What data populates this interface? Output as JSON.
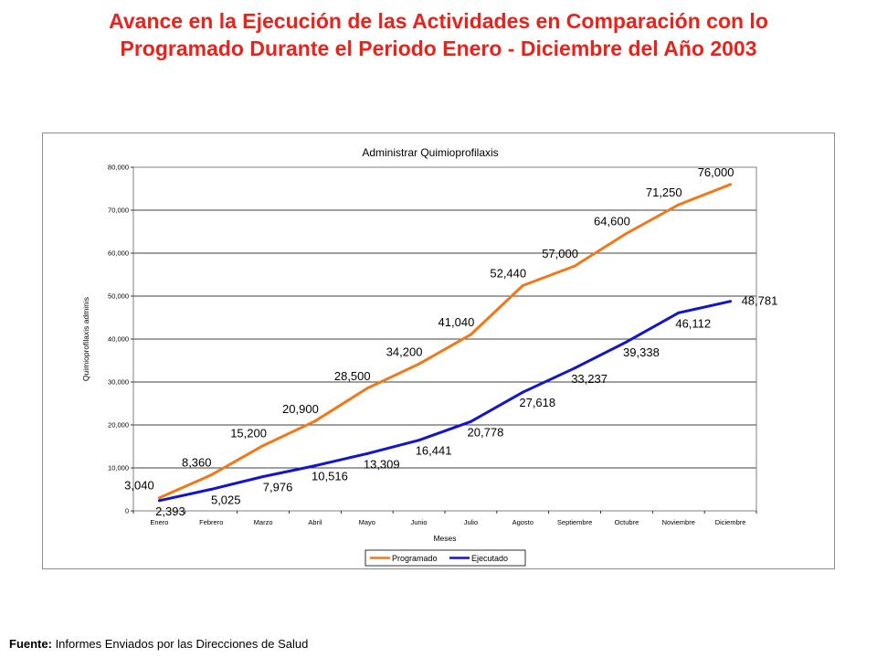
{
  "header": {
    "title_line1": "Avance en la Ejecución de las Actividades en Comparación con lo",
    "title_line2": "Programado Durante el Periodo Enero - Diciembre del Año 2003"
  },
  "footer": {
    "source_label": "Fuente:",
    "source_text": " Informes Enviados por las Direcciones de Salud"
  },
  "chart_data": {
    "type": "line",
    "title": "Administrar Quimioprofilaxis",
    "xlabel": "Meses",
    "ylabel": "Quimioprofilaxis adminis",
    "ylim": [
      0,
      80000
    ],
    "yticks": [
      0,
      10000,
      20000,
      30000,
      40000,
      50000,
      60000,
      70000,
      80000
    ],
    "ytick_labels": [
      "0",
      "10,000",
      "20,000",
      "30,000",
      "40,000",
      "50,000",
      "60,000",
      "70,000",
      "80,000"
    ],
    "grid": true,
    "legend_position": "bottom",
    "categories": [
      "Enero",
      "Febrero",
      "Marzo",
      "Abril",
      "Mayo",
      "Junio",
      "Julio",
      "Agosto",
      "Septiembre",
      "Octubre",
      "Noviembre",
      "Diciembre"
    ],
    "series": [
      {
        "name": "Programado",
        "color": "#f07818",
        "values": [
          3040,
          8360,
          15200,
          20900,
          28500,
          34200,
          41040,
          52440,
          57000,
          64600,
          71250,
          76000
        ],
        "labels": [
          "3,040",
          "8,360",
          "15,200",
          "20,900",
          "28,500",
          "34,200",
          "41,040",
          "52,440",
          "57,000",
          "64,600",
          "71,250",
          "76,000"
        ]
      },
      {
        "name": "Ejecutado",
        "color": "#1414c8",
        "values": [
          2393,
          5025,
          7976,
          10516,
          13309,
          16441,
          20778,
          27618,
          33237,
          39338,
          46112,
          48781
        ],
        "labels": [
          "2,393",
          "5,025",
          "7,976",
          "10,516",
          "13,309",
          "16,441",
          "20,778",
          "27,618",
          "33,237",
          "39,338",
          "46,112",
          "48,781"
        ]
      }
    ]
  }
}
